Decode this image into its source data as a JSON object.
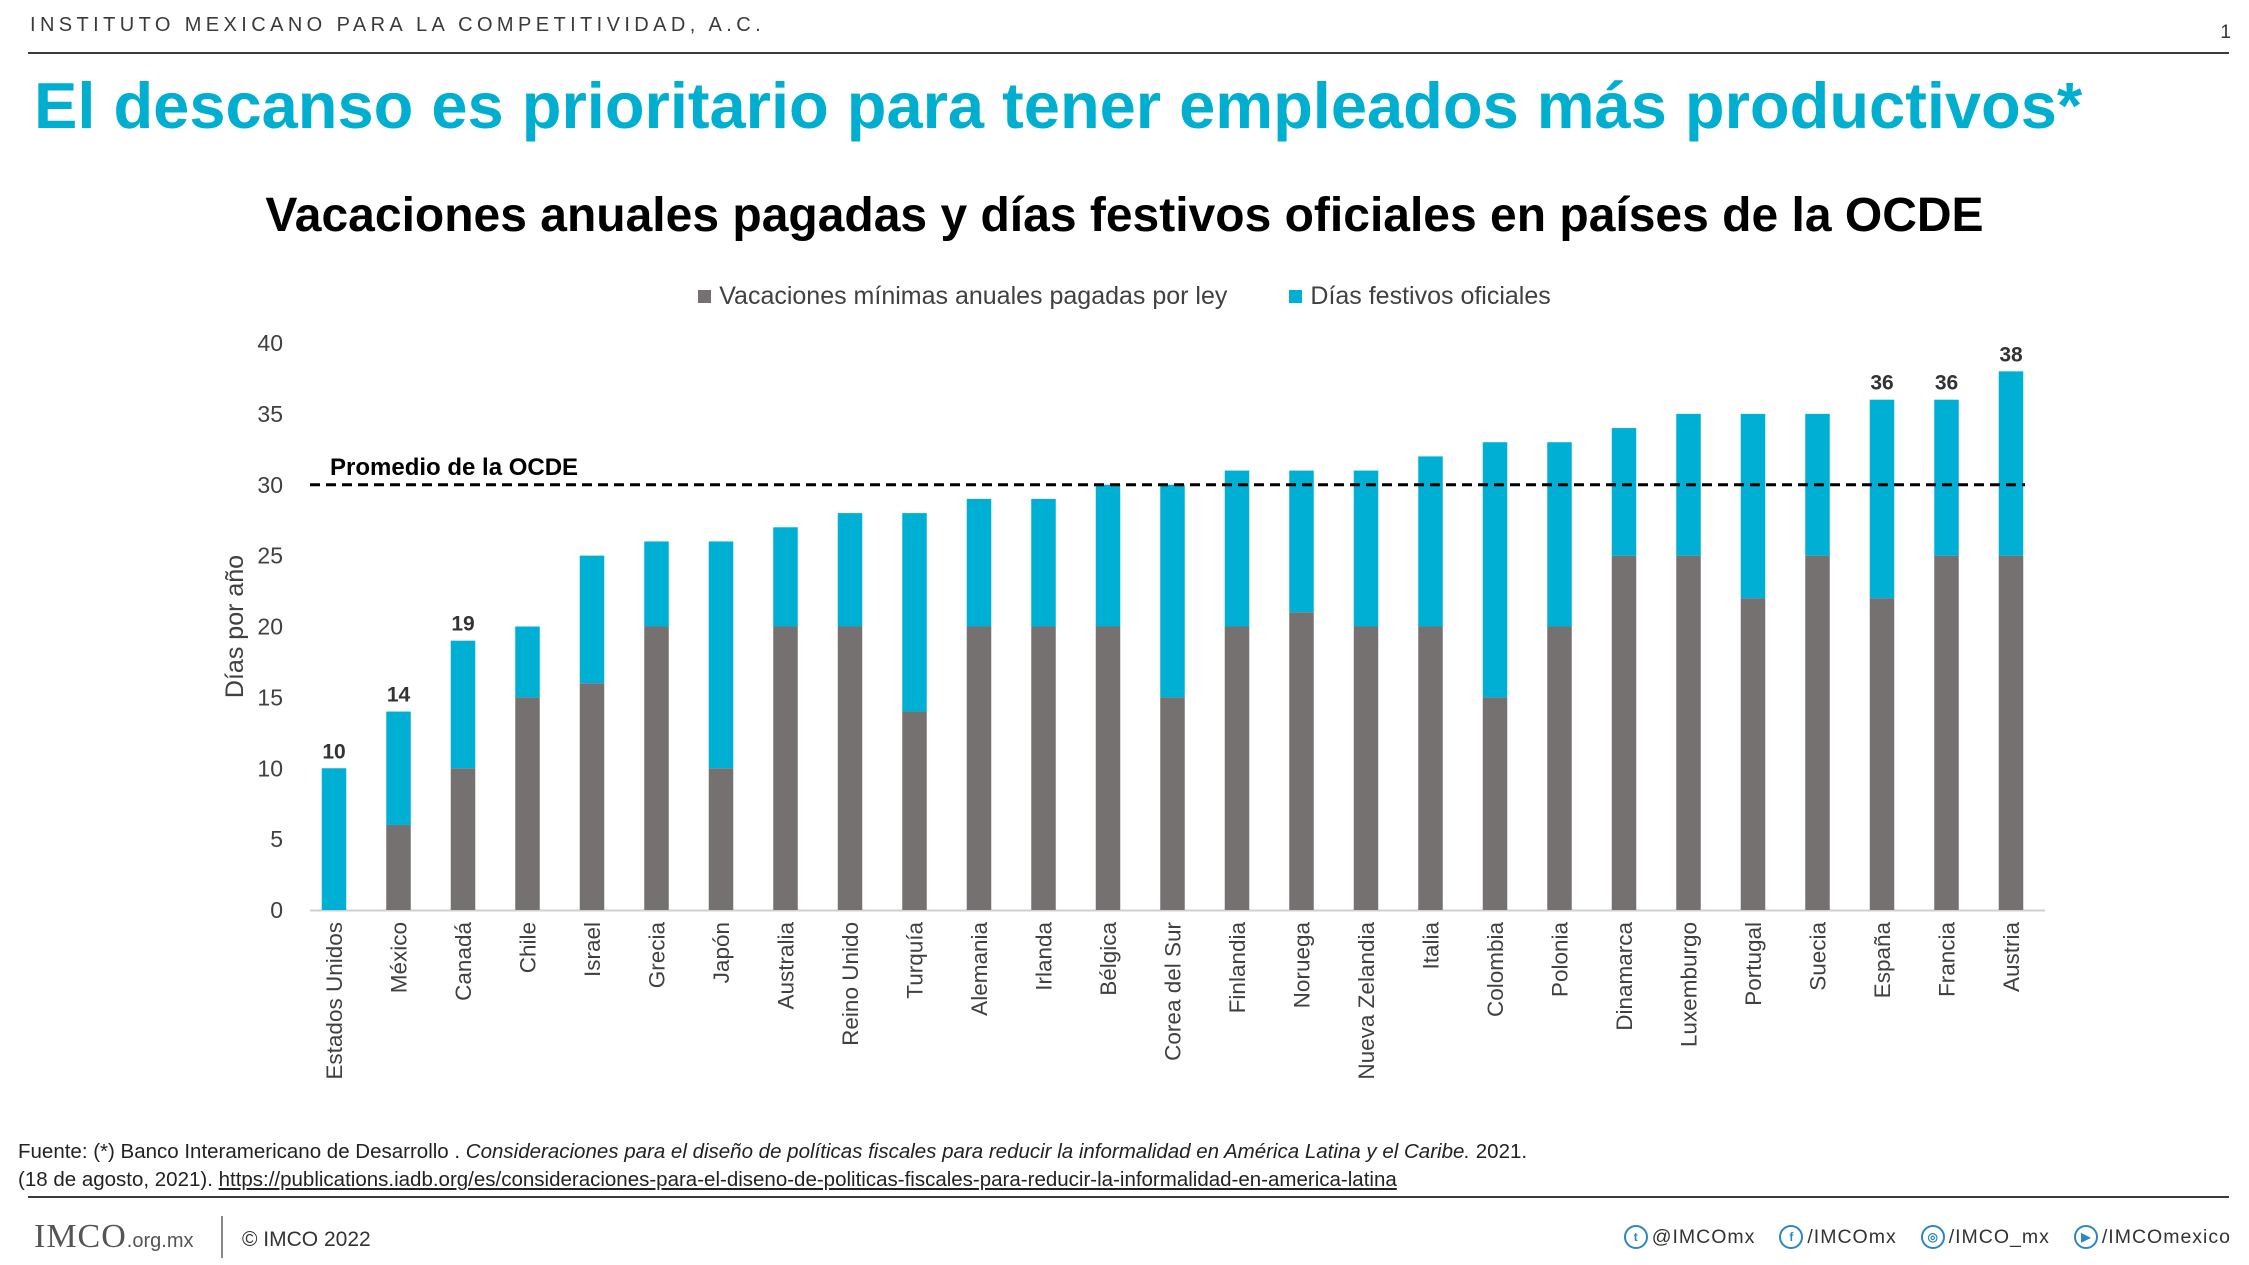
{
  "header": {
    "org": "INSTITUTO MEXICANO PARA LA COMPETITIVIDAD, A.C.",
    "page_number": "1",
    "title": "El descanso es prioritario para tener empleados más productivos*"
  },
  "chart_data": {
    "type": "bar",
    "stacked": true,
    "title": "Vacaciones anuales pagadas y días festivos oficiales en países de la OCDE",
    "xlabel": "",
    "ylabel": "Días por año",
    "ylim": [
      0,
      40
    ],
    "yticks": [
      0,
      5,
      10,
      15,
      20,
      25,
      30,
      35,
      40
    ],
    "legend_position": "top",
    "categories": [
      "Estados Unidos",
      "México",
      "Canadá",
      "Chile",
      "Israel",
      "Grecia",
      "Japón",
      "Australia",
      "Reino Unido",
      "Turquía",
      "Alemania",
      "Irlanda",
      "Bélgica",
      "Corea del Sur",
      "Finlandia",
      "Noruega",
      "Nueva Zelandia",
      "Italia",
      "Colombia",
      "Polonia",
      "Dinamarca",
      "Luxemburgo",
      "Portugal",
      "Suecia",
      "España",
      "Francia",
      "Austria"
    ],
    "series": [
      {
        "name": "Vacaciones mínimas anuales pagadas por ley",
        "color": "#767171",
        "values": [
          0,
          6,
          10,
          15,
          16,
          20,
          10,
          20,
          20,
          14,
          20,
          20,
          20,
          15,
          20,
          21,
          20,
          20,
          15,
          20,
          25,
          25,
          22,
          25,
          22,
          25,
          25
        ]
      },
      {
        "name": "Días festivos oficiales",
        "color": "#00b0d4",
        "values": [
          10,
          8,
          9,
          5,
          9,
          6,
          16,
          7,
          8,
          14,
          9,
          9,
          10,
          15,
          11,
          10,
          11,
          12,
          18,
          13,
          9,
          10,
          13,
          10,
          14,
          11,
          13
        ]
      }
    ],
    "data_labels": [
      {
        "category": "Estados Unidos",
        "text": "10"
      },
      {
        "category": "México",
        "text": "14"
      },
      {
        "category": "Canadá",
        "text": "19"
      },
      {
        "category": "España",
        "text": "36"
      },
      {
        "category": "Francia",
        "text": "36"
      },
      {
        "category": "Austria",
        "text": "38"
      }
    ],
    "reference_line": {
      "value": 30,
      "label": "Promedio de la OCDE",
      "style": "dashed"
    }
  },
  "source": {
    "line1_prefix": "Fuente: (*) Banco Interamericano de Desarrollo . ",
    "line1_italic": "Consideraciones para el diseño de políticas fiscales para reducir la informalidad en América Latina y el Caribe.",
    "line1_suffix": " 2021.",
    "line2_prefix": "(18 de agosto, 2021). ",
    "line2_link": "https://publications.iadb.org/es/consideraciones-para-el-diseno-de-politicas-fiscales-para-reducir-la-informalidad-en-america-latina"
  },
  "footer": {
    "logo_text": "IMCO",
    "logo_suffix": ".org.mx",
    "copyright": "© IMCO 2022",
    "socials": [
      {
        "icon": "twitter-icon",
        "glyph": "t",
        "handle": "@IMCOmx"
      },
      {
        "icon": "facebook-icon",
        "glyph": "f",
        "handle": "/IMCOmx"
      },
      {
        "icon": "instagram-icon",
        "glyph": "◎",
        "handle": "/IMCO_mx"
      },
      {
        "icon": "youtube-icon",
        "glyph": "▶",
        "handle": "/IMCOmexico"
      }
    ]
  }
}
